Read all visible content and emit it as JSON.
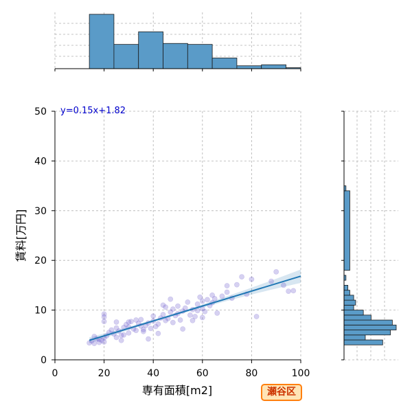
{
  "chart_data": {
    "type": "scatter",
    "title": "",
    "xlabel": "専有面積[m2]",
    "ylabel": "賃料[万円]",
    "xlim": [
      0,
      100
    ],
    "ylim": [
      0,
      50
    ],
    "x_ticks": [
      "0",
      "20",
      "40",
      "60",
      "80",
      "100"
    ],
    "y_ticks": [
      "0",
      "10",
      "20",
      "30",
      "40",
      "50"
    ],
    "grid": true,
    "regression": {
      "label": "y=0.15x+1.82",
      "slope": 0.15,
      "intercept": 1.82,
      "x_range": [
        14,
        100
      ]
    },
    "badge": "瀬谷区",
    "colors": {
      "points": "#6a5acd",
      "line": "#1f77b4",
      "bars": "#5a9bc8",
      "badge_border": "#ff7f0e",
      "badge_fill": "#ffe4b5",
      "badge_text": "#cc3300",
      "eq_text": "#0000cc"
    },
    "points": [
      [
        14,
        3.4
      ],
      [
        15,
        3.8
      ],
      [
        16,
        3.3
      ],
      [
        17,
        4.2
      ],
      [
        18,
        3.5
      ],
      [
        19,
        3.9
      ],
      [
        20,
        3.6
      ],
      [
        20,
        4.4
      ],
      [
        20,
        8.6
      ],
      [
        20,
        9.2
      ],
      [
        20,
        7.7
      ],
      [
        21,
        4.8
      ],
      [
        22,
        5.5
      ],
      [
        23,
        6.0
      ],
      [
        24,
        5.2
      ],
      [
        25,
        6.4
      ],
      [
        25,
        7.6
      ],
      [
        26,
        5.8
      ],
      [
        27,
        4.9
      ],
      [
        28,
        6.5
      ],
      [
        29,
        7.1
      ],
      [
        30,
        5.4
      ],
      [
        30,
        6.6
      ],
      [
        31,
        7.7
      ],
      [
        32,
        6.2
      ],
      [
        33,
        5.9
      ],
      [
        34,
        7.3
      ],
      [
        35,
        6.8
      ],
      [
        35,
        8.1
      ],
      [
        36,
        5.7
      ],
      [
        37,
        6.9
      ],
      [
        38,
        7.4
      ],
      [
        39,
        6.3
      ],
      [
        40,
        7.8
      ],
      [
        40,
        8.8
      ],
      [
        41,
        6.7
      ],
      [
        42,
        7.2
      ],
      [
        43,
        8.4
      ],
      [
        44,
        9.1
      ],
      [
        45,
        7.9
      ],
      [
        45,
        10.6
      ],
      [
        46,
        8.3
      ],
      [
        47,
        9.6
      ],
      [
        48,
        7.5
      ],
      [
        49,
        8.9
      ],
      [
        50,
        9.3
      ],
      [
        50,
        10.8
      ],
      [
        51,
        8.0
      ],
      [
        52,
        9.8
      ],
      [
        53,
        10.4
      ],
      [
        54,
        11.6
      ],
      [
        55,
        9.0
      ],
      [
        56,
        10.1
      ],
      [
        57,
        8.7
      ],
      [
        58,
        11.2
      ],
      [
        59,
        12.6
      ],
      [
        60,
        10.3
      ],
      [
        60,
        11.8
      ],
      [
        61,
        9.7
      ],
      [
        62,
        12.1
      ],
      [
        63,
        10.9
      ],
      [
        64,
        11.5
      ],
      [
        65,
        12.3
      ],
      [
        66,
        9.4
      ],
      [
        68,
        12.8
      ],
      [
        70,
        13.6
      ],
      [
        70,
        14.9
      ],
      [
        72,
        12.4
      ],
      [
        74,
        15.1
      ],
      [
        76,
        16.7
      ],
      [
        78,
        13.2
      ],
      [
        80,
        16.2
      ],
      [
        82,
        8.7
      ],
      [
        88,
        15.8
      ],
      [
        90,
        17.7
      ],
      [
        93,
        15.0
      ],
      [
        95,
        13.8
      ],
      [
        97,
        13.9
      ],
      [
        44,
        11.0
      ],
      [
        47,
        12.2
      ],
      [
        30,
        7.6
      ],
      [
        25,
        4.5
      ],
      [
        27,
        3.9
      ],
      [
        16,
        4.7
      ],
      [
        18,
        4.1
      ],
      [
        33,
        8.0
      ],
      [
        38,
        4.2
      ],
      [
        42,
        5.3
      ],
      [
        52,
        6.2
      ],
      [
        56,
        7.9
      ],
      [
        60,
        8.5
      ],
      [
        64,
        13.0
      ],
      [
        58,
        9.9
      ],
      [
        48,
        10.2
      ],
      [
        36,
        6.1
      ],
      [
        28,
        5.0
      ]
    ],
    "top_histogram": {
      "bin_edges": [
        14,
        24,
        34,
        44,
        54,
        64,
        74,
        84,
        94,
        100
      ],
      "counts": [
        56,
        25,
        38,
        26,
        25,
        11,
        3,
        4,
        1
      ]
    },
    "right_histogram": {
      "bin_edges": [
        3,
        4,
        5,
        6,
        7,
        8,
        9,
        10,
        11,
        12,
        13,
        14,
        15,
        16,
        17,
        18,
        34,
        35
      ],
      "counts": [
        20,
        11,
        24,
        27,
        25,
        14,
        10,
        5,
        6,
        5,
        3,
        2,
        0,
        1,
        0,
        3,
        1
      ]
    }
  }
}
